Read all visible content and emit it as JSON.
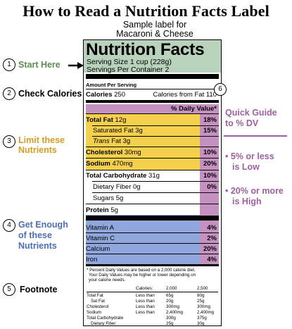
{
  "title": "How to Read a Nutrition Facts Label",
  "sample_label_for": "Sample label for",
  "sample_product": "Macaroni & Cheese",
  "label": {
    "heading": "Nutrition Facts",
    "serving_size": "Serving Size 1 cup (228g)",
    "servings_per_container": "Servings Per Container  2",
    "amount_per_serving": "Amount Per Serving",
    "calories_label": "Calories",
    "calories_value": "250",
    "calories_from_fat": "Calories from Fat 110",
    "daily_value_header": "% Daily Value*",
    "nutrients": [
      {
        "name": "Total Fat",
        "amount": "12g",
        "pct": "18%"
      },
      {
        "name": "Saturated Fat",
        "amount": "3g",
        "pct": "15%"
      },
      {
        "name": "Trans",
        "name_suffix": " Fat",
        "amount": "3g",
        "pct": ""
      },
      {
        "name": "Cholesterol",
        "amount": "30mg",
        "pct": "10%"
      },
      {
        "name": "Sodium",
        "amount": "470mg",
        "pct": "20%"
      },
      {
        "name": "Total Carbohydrate",
        "amount": "31g",
        "pct": "10%"
      },
      {
        "name": "Dietary Fiber",
        "amount": "0g",
        "pct": "0%"
      },
      {
        "name": "Sugars",
        "amount": "5g",
        "pct": ""
      },
      {
        "name": "Protein",
        "amount": "5g",
        "pct": ""
      }
    ],
    "vitamins": [
      {
        "name": "Vitamin A",
        "pct": "4%"
      },
      {
        "name": "Vitamin C",
        "pct": "2%"
      },
      {
        "name": "Calcium",
        "pct": "20%"
      },
      {
        "name": "Iron",
        "pct": "4%"
      }
    ],
    "footnote_lines": [
      "* Percent Daily Values are based on a 2,000 calorie diet.",
      "  Your Daily Values may be higher or lower depending on",
      "  your calorie needs."
    ],
    "footnote_table": {
      "header": [
        "",
        "",
        "Calories:",
        "2,000",
        "2,500"
      ],
      "rows": [
        [
          "Total Fat",
          "",
          "Less than",
          "65g",
          "80g"
        ],
        [
          "Sat Fat",
          "",
          "Less than",
          "20g",
          "25g"
        ],
        [
          "Cholesterol",
          "",
          "Less than",
          "300mg",
          "300mg"
        ],
        [
          "Sodium",
          "",
          "Less than",
          "2,400mg",
          "2,400mg"
        ],
        [
          "Total Carbohydrate",
          "",
          "",
          "300g",
          "375g"
        ],
        [
          "Dietary Fiber",
          "",
          "",
          "25g",
          "30g"
        ]
      ]
    }
  },
  "annotations": {
    "n1": "1",
    "a1": "Start Here",
    "n2": "2",
    "a2": "Check Calories",
    "n3": "3",
    "a3_l1": "Limit these",
    "a3_l2": "Nutrients",
    "n4": "4",
    "a4_l1": "Get Enough",
    "a4_l2": "of these",
    "a4_l3": "Nutrients",
    "n5": "5",
    "a5": "Footnote",
    "n6": "6",
    "quick_l1": "Quick Guide",
    "quick_l2": "to % DV",
    "low_l1": "• 5% or less",
    "low_l2": "is Low",
    "high_l1": "• 20% or more",
    "high_l2": "is High"
  },
  "colors": {
    "green": "#b8d2bc",
    "yellow": "#f5d04c",
    "blue": "#8fa7dc",
    "purple": "#c591c1"
  }
}
